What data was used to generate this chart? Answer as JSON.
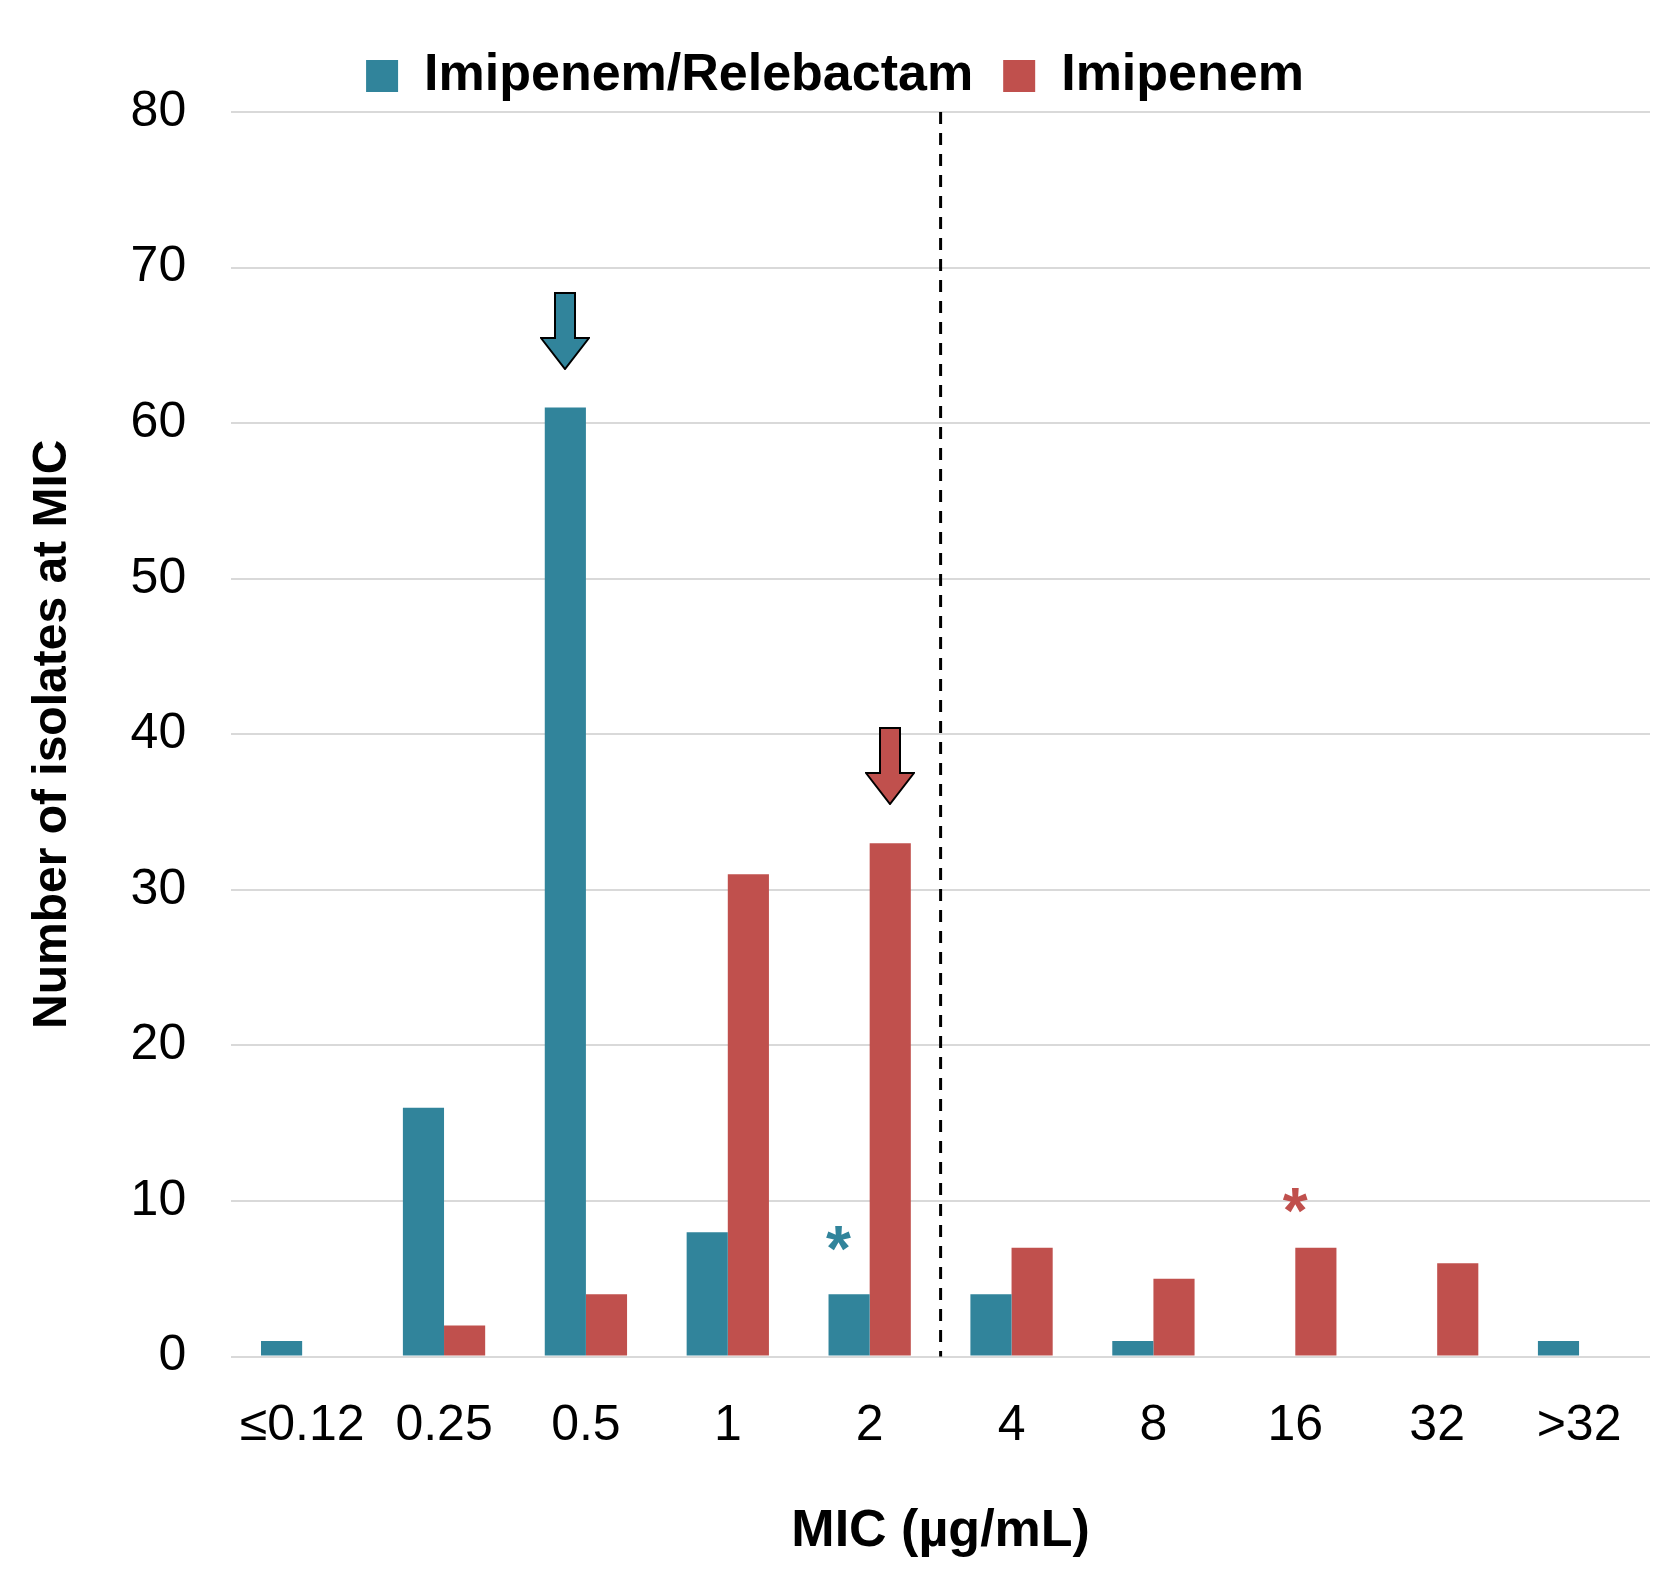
{
  "chart_data": {
    "type": "bar",
    "xlabel": "MIC (µg/mL)",
    "ylabel": "Number of isolates at MIC",
    "categories": [
      "≤0.12",
      "0.25",
      "0.5",
      "1",
      "2",
      "4",
      "8",
      "16",
      "32",
      ">32"
    ],
    "series": [
      {
        "name": "Imipenem/Relebactam",
        "color": "#31849b",
        "values": [
          1,
          16,
          61,
          8,
          4,
          4,
          1,
          0,
          0,
          1
        ]
      },
      {
        "name": "Imipenem",
        "color": "#c0504d",
        "values": [
          0,
          2,
          4,
          31,
          33,
          7,
          5,
          7,
          6,
          null
        ]
      }
    ],
    "ylim": [
      0,
      80
    ],
    "yticks": [
      0,
      10,
      20,
      30,
      40,
      50,
      60,
      70,
      80
    ],
    "grid": "y",
    "legend": "top",
    "ref_lines": [
      {
        "axis": "x",
        "value": "2",
        "line_style": "dashed",
        "color": "#000000"
      }
    ],
    "annotations": [
      "*",
      "*"
    ]
  }
}
